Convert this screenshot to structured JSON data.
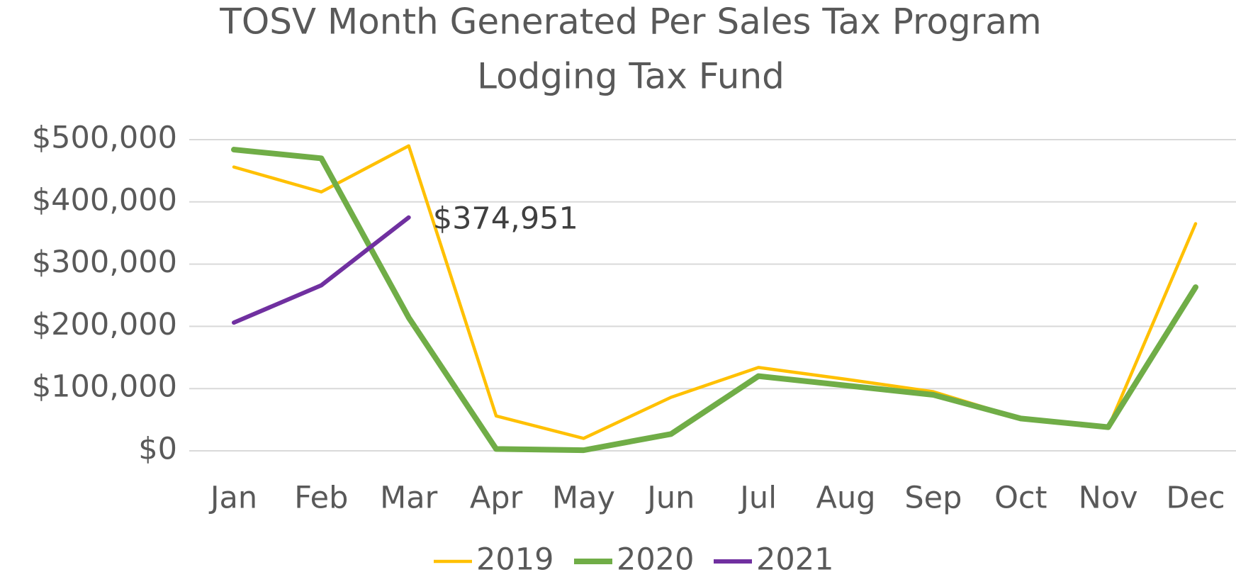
{
  "chart_data": {
    "type": "line",
    "title": "TOSV Month Generated Per Sales Tax Program",
    "subtitle": "Lodging Tax Fund",
    "categories": [
      "Jan",
      "Feb",
      "Mar",
      "Apr",
      "May",
      "Jun",
      "Jul",
      "Aug",
      "Sep",
      "Oct",
      "Nov",
      "Dec"
    ],
    "series": [
      {
        "name": "2019",
        "color": "#ffc000",
        "values": [
          456000,
          416000,
          490000,
          56000,
          20000,
          86000,
          134000,
          115000,
          95000,
          52000,
          37000,
          365000
        ]
      },
      {
        "name": "2020",
        "color": "#70ad47",
        "values": [
          484000,
          470000,
          214000,
          3000,
          1000,
          27000,
          120000,
          105000,
          90000,
          52000,
          38000,
          263000
        ]
      },
      {
        "name": "2021",
        "color": "#7030a0",
        "values": [
          206000,
          266000,
          374951,
          null,
          null,
          null,
          null,
          null,
          null,
          null,
          null,
          null
        ],
        "value_labels": [
          null,
          null,
          "$374,951",
          null,
          null,
          null,
          null,
          null,
          null,
          null,
          null,
          null
        ]
      }
    ],
    "ylim": [
      0,
      500000
    ],
    "yticks": [
      {
        "value": 0,
        "label": "$0"
      },
      {
        "value": 100000,
        "label": "$100,000"
      },
      {
        "value": 200000,
        "label": "$200,000"
      },
      {
        "value": 300000,
        "label": "$300,000"
      },
      {
        "value": 400000,
        "label": "$400,000"
      },
      {
        "value": 500000,
        "label": "$500,000"
      }
    ],
    "grid": true,
    "legend": "bottom"
  }
}
